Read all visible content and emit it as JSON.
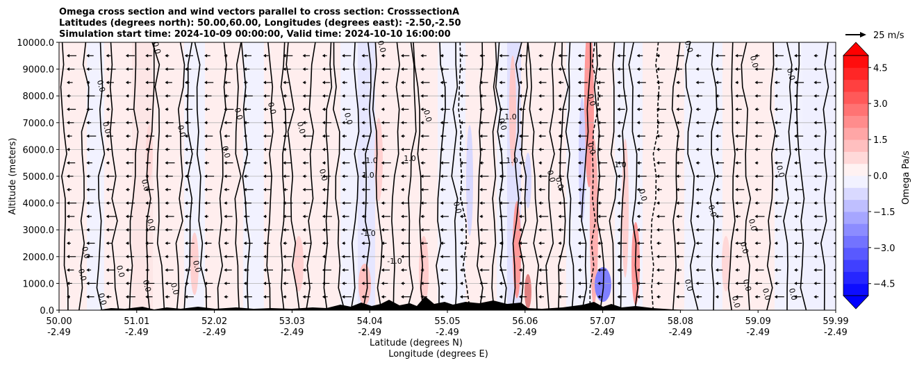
{
  "chart_data": {
    "type": "contour",
    "title_lines": [
      "Omega cross section and wind vectors parallel to cross section: CrosssectionA",
      "Latitudes (degrees north): 50.00,60.00, Longitudes (degrees east): -2.50,-2.50",
      "Simulation start time: 2024-10-09 00:00:00, Valid time: 2024-10-10 16:00:00"
    ],
    "ylabel": "Altitude (meters)",
    "xlabel_lat": "Latitude (degrees N)",
    "xlabel_lon": "Longitude (degrees E)",
    "ylim": [
      0,
      10000
    ],
    "y_ticks": [
      "0.0",
      "1000.0",
      "2000.0",
      "3000.0",
      "4000.0",
      "5000.0",
      "6000.0",
      "7000.0",
      "8000.0",
      "9000.0",
      "10000.0"
    ],
    "x_ticks_lat": [
      "50.00",
      "51.01",
      "52.02",
      "53.03",
      "54.04",
      "55.05",
      "56.06",
      "57.07",
      "58.08",
      "59.09",
      "59.99"
    ],
    "x_ticks_lon": [
      "-2.49",
      "-2.49",
      "-2.49",
      "-2.49",
      "-2.49",
      "-2.49",
      "-2.49",
      "-2.49",
      "-2.49",
      "-2.49",
      "-2.49"
    ],
    "colorbar": {
      "label": "Omega Pa/s",
      "range": [
        -5,
        5
      ],
      "ticks": [
        "4.5",
        "3.0",
        "1.5",
        "0.0",
        "−1.5",
        "−3.0",
        "−4.5"
      ],
      "low_color": "#0000ff",
      "high_color": "#ff0000"
    },
    "quiver_key": {
      "label": "25 m/s",
      "speed": 25
    },
    "contour_labels": [
      "0.0",
      "1.0",
      "-1.0"
    ]
  }
}
